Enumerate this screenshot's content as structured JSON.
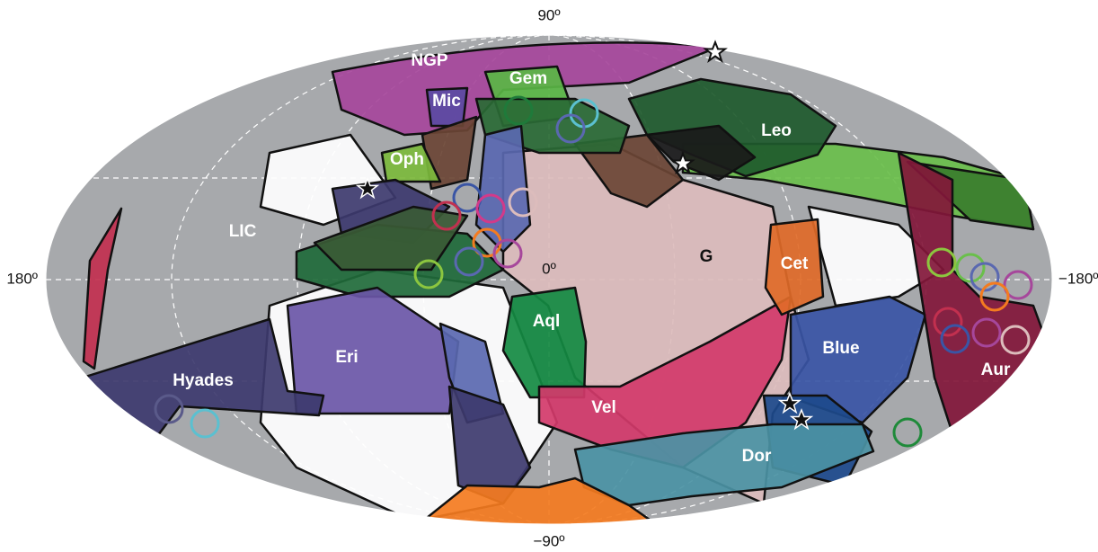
{
  "axis_labels": {
    "top": "90º",
    "bottom": "−90º",
    "left": "180º",
    "right": "−180º",
    "center": "0º"
  },
  "clouds": [
    {
      "label": "NGP"
    },
    {
      "label": "Gem"
    },
    {
      "label": "Mic"
    },
    {
      "label": "Leo"
    },
    {
      "label": "Oph"
    },
    {
      "label": "LIC"
    },
    {
      "label": "G"
    },
    {
      "label": "Cet"
    },
    {
      "label": "Aql"
    },
    {
      "label": "Eri"
    },
    {
      "label": "Blue"
    },
    {
      "label": "Hyades"
    },
    {
      "label": "Vel"
    },
    {
      "label": "Aur"
    },
    {
      "label": "Dor"
    }
  ]
}
